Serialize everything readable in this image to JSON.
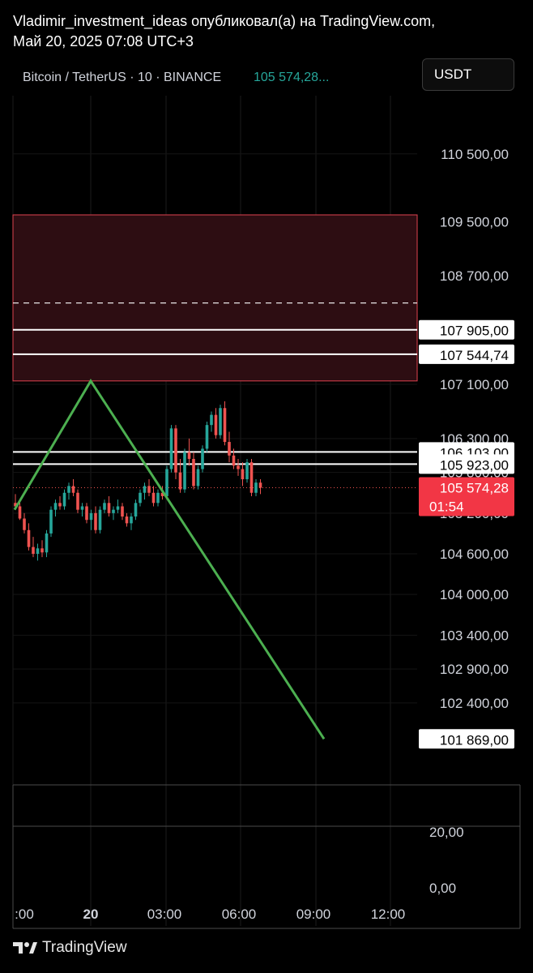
{
  "header": {
    "line1": "Vladimir_investment_ideas опубликовал(а) на TradingView.com,",
    "line2": "Май 20, 2025 07:08 UTC+3"
  },
  "symbol": {
    "name": "Bitcoin / TetherUS · 10 · BINANCE",
    "price": "105 574,28..."
  },
  "currency_button": "USDT",
  "footer": {
    "brand": "TradingView"
  },
  "colors": {
    "up": "#26a69a",
    "down": "#ef5350",
    "zone_fill": "#2d0d12",
    "zone_border": "#e0424f",
    "pattern_line": "#4caf50"
  },
  "chart_data": {
    "type": "candlestick",
    "y_axis_labels": [
      "110 500,00",
      "109 500,00",
      "108 700,00",
      "107 100,00",
      "106 300,00",
      "105 800,00",
      "105 200,00",
      "104 600,00",
      "104 000,00",
      "103 400,00",
      "102 900,00",
      "102 400,00"
    ],
    "x_axis_labels": [
      ":00",
      "20",
      "03:00",
      "06:00",
      "09:00",
      "12:00"
    ],
    "indicator_labels": [
      "20,00",
      "0,00"
    ],
    "price_levels": [
      {
        "label": "107 905,00",
        "value": 107905
      },
      {
        "label": "107 544,74",
        "value": 107544.74
      },
      {
        "label": "106 103,00",
        "value": 106103
      },
      {
        "label": "105 923,00",
        "value": 105923
      },
      {
        "label": "101 869,00",
        "value": 101869
      }
    ],
    "current_price": {
      "label": "105 574,28",
      "value": 105574.28,
      "countdown": "01:54"
    },
    "resistance_zone": {
      "top": 109600,
      "bottom": 107150,
      "dashed_level": 108300
    },
    "pattern_line": [
      {
        "x_label": ":00",
        "price": 105250
      },
      {
        "x_label": "20",
        "price": 107150
      },
      {
        "x_label": "~09:10",
        "price": 101869
      }
    ],
    "candles": [
      [
        105350,
        105480,
        105250,
        105300
      ],
      [
        105300,
        105380,
        105100,
        105120
      ],
      [
        105120,
        105200,
        104900,
        104950
      ],
      [
        104950,
        105050,
        104650,
        104700
      ],
      [
        104700,
        104850,
        104550,
        104600
      ],
      [
        104600,
        104750,
        104500,
        104680
      ],
      [
        104680,
        104800,
        104550,
        104620
      ],
      [
        104620,
        104950,
        104550,
        104900
      ],
      [
        104900,
        105300,
        104850,
        105250
      ],
      [
        105250,
        105400,
        105150,
        105350
      ],
      [
        105350,
        105450,
        105250,
        105300
      ],
      [
        105300,
        105550,
        105250,
        105500
      ],
      [
        105500,
        105650,
        105400,
        105600
      ],
      [
        105600,
        105700,
        105450,
        105500
      ],
      [
        105500,
        105550,
        105200,
        105250
      ],
      [
        105250,
        105350,
        105150,
        105300
      ],
      [
        105300,
        105350,
        105050,
        105100
      ],
      [
        105100,
        105250,
        104950,
        105200
      ],
      [
        105200,
        105300,
        104900,
        104950
      ],
      [
        104950,
        105300,
        104900,
        105250
      ],
      [
        105250,
        105400,
        105200,
        105350
      ],
      [
        105350,
        105450,
        105150,
        105200
      ],
      [
        105200,
        105300,
        105100,
        105250
      ],
      [
        105250,
        105400,
        105200,
        105300
      ],
      [
        105300,
        105350,
        105100,
        105150
      ],
      [
        105150,
        105200,
        105000,
        105050
      ],
      [
        105050,
        105200,
        104950,
        105150
      ],
      [
        105150,
        105400,
        105100,
        105350
      ],
      [
        105350,
        105550,
        105300,
        105500
      ],
      [
        105500,
        105650,
        105400,
        105600
      ],
      [
        105600,
        105700,
        105450,
        105500
      ],
      [
        105500,
        105600,
        105300,
        105350
      ],
      [
        105350,
        105550,
        105300,
        105500
      ],
      [
        105500,
        105600,
        105400,
        105450
      ],
      [
        105450,
        105900,
        105400,
        105850
      ],
      [
        105850,
        106500,
        105800,
        106450
      ],
      [
        106450,
        106500,
        105700,
        105800
      ],
      [
        105800,
        106000,
        105500,
        105550
      ],
      [
        105550,
        106150,
        105500,
        106100
      ],
      [
        106100,
        106300,
        105900,
        106000
      ],
      [
        106000,
        106100,
        105550,
        105600
      ],
      [
        105600,
        105900,
        105550,
        105850
      ],
      [
        105850,
        106200,
        105800,
        106150
      ],
      [
        106150,
        106550,
        106100,
        106500
      ],
      [
        106500,
        106700,
        106400,
        106650
      ],
      [
        106650,
        106750,
        106300,
        106350
      ],
      [
        106350,
        106800,
        106300,
        106750
      ],
      [
        106750,
        106850,
        106200,
        106250
      ],
      [
        106250,
        106400,
        105950,
        106050
      ],
      [
        106050,
        106150,
        105850,
        105900
      ],
      [
        105900,
        106000,
        105750,
        105850
      ],
      [
        105850,
        105950,
        105600,
        105700
      ],
      [
        105700,
        106000,
        105650,
        105950
      ],
      [
        105950,
        106000,
        105450,
        105500
      ],
      [
        105500,
        105700,
        105450,
        105650
      ],
      [
        105650,
        105700,
        105480,
        105574
      ]
    ]
  }
}
